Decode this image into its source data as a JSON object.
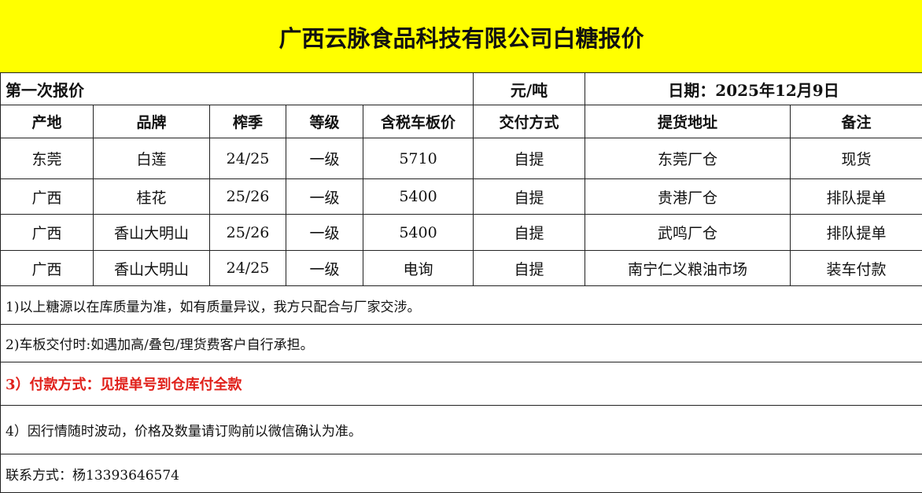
{
  "title": "广西云脉食品科技有限公司白糖报价",
  "subheader": {
    "label": "第一次报价",
    "unit": "元/吨",
    "date": "日期：2025年12月9日"
  },
  "columns": [
    "产地",
    "品牌",
    "榨季",
    "等级",
    "含税车板价",
    "交付方式",
    "提货地址",
    "备注"
  ],
  "rows": [
    [
      "东莞",
      "白莲",
      "24/25",
      "一级",
      "5710",
      "自提",
      "东莞厂仓",
      "现货"
    ],
    [
      "广西",
      "桂花",
      "25/26",
      "一级",
      "5400",
      "自提",
      "贵港厂仓",
      "排队提单"
    ],
    [
      "广西",
      "香山大明山",
      "25/26",
      "一级",
      "5400",
      "自提",
      "武鸣厂仓",
      "排队提单"
    ],
    [
      "广西",
      "香山大明山",
      "24/25",
      "一级",
      "电询",
      "自提",
      "南宁仁义粮油市场",
      "装车付款"
    ]
  ],
  "notes": [
    "1)以上糖源以在库质量为准，如有质量异议，我方只配合与厂家交涉。",
    "2)车板交付时:如遇加高/叠包/理货费客户自行承担。",
    "3）付款方式：见提单号到仓库付全款",
    "4）因行情随时波动，价格及数量请订购前以微信确认为准。"
  ],
  "contact": "联系方式：杨13393646574",
  "colors": {
    "title_bg": "#ffff00",
    "highlight_note": "#e0201a"
  }
}
